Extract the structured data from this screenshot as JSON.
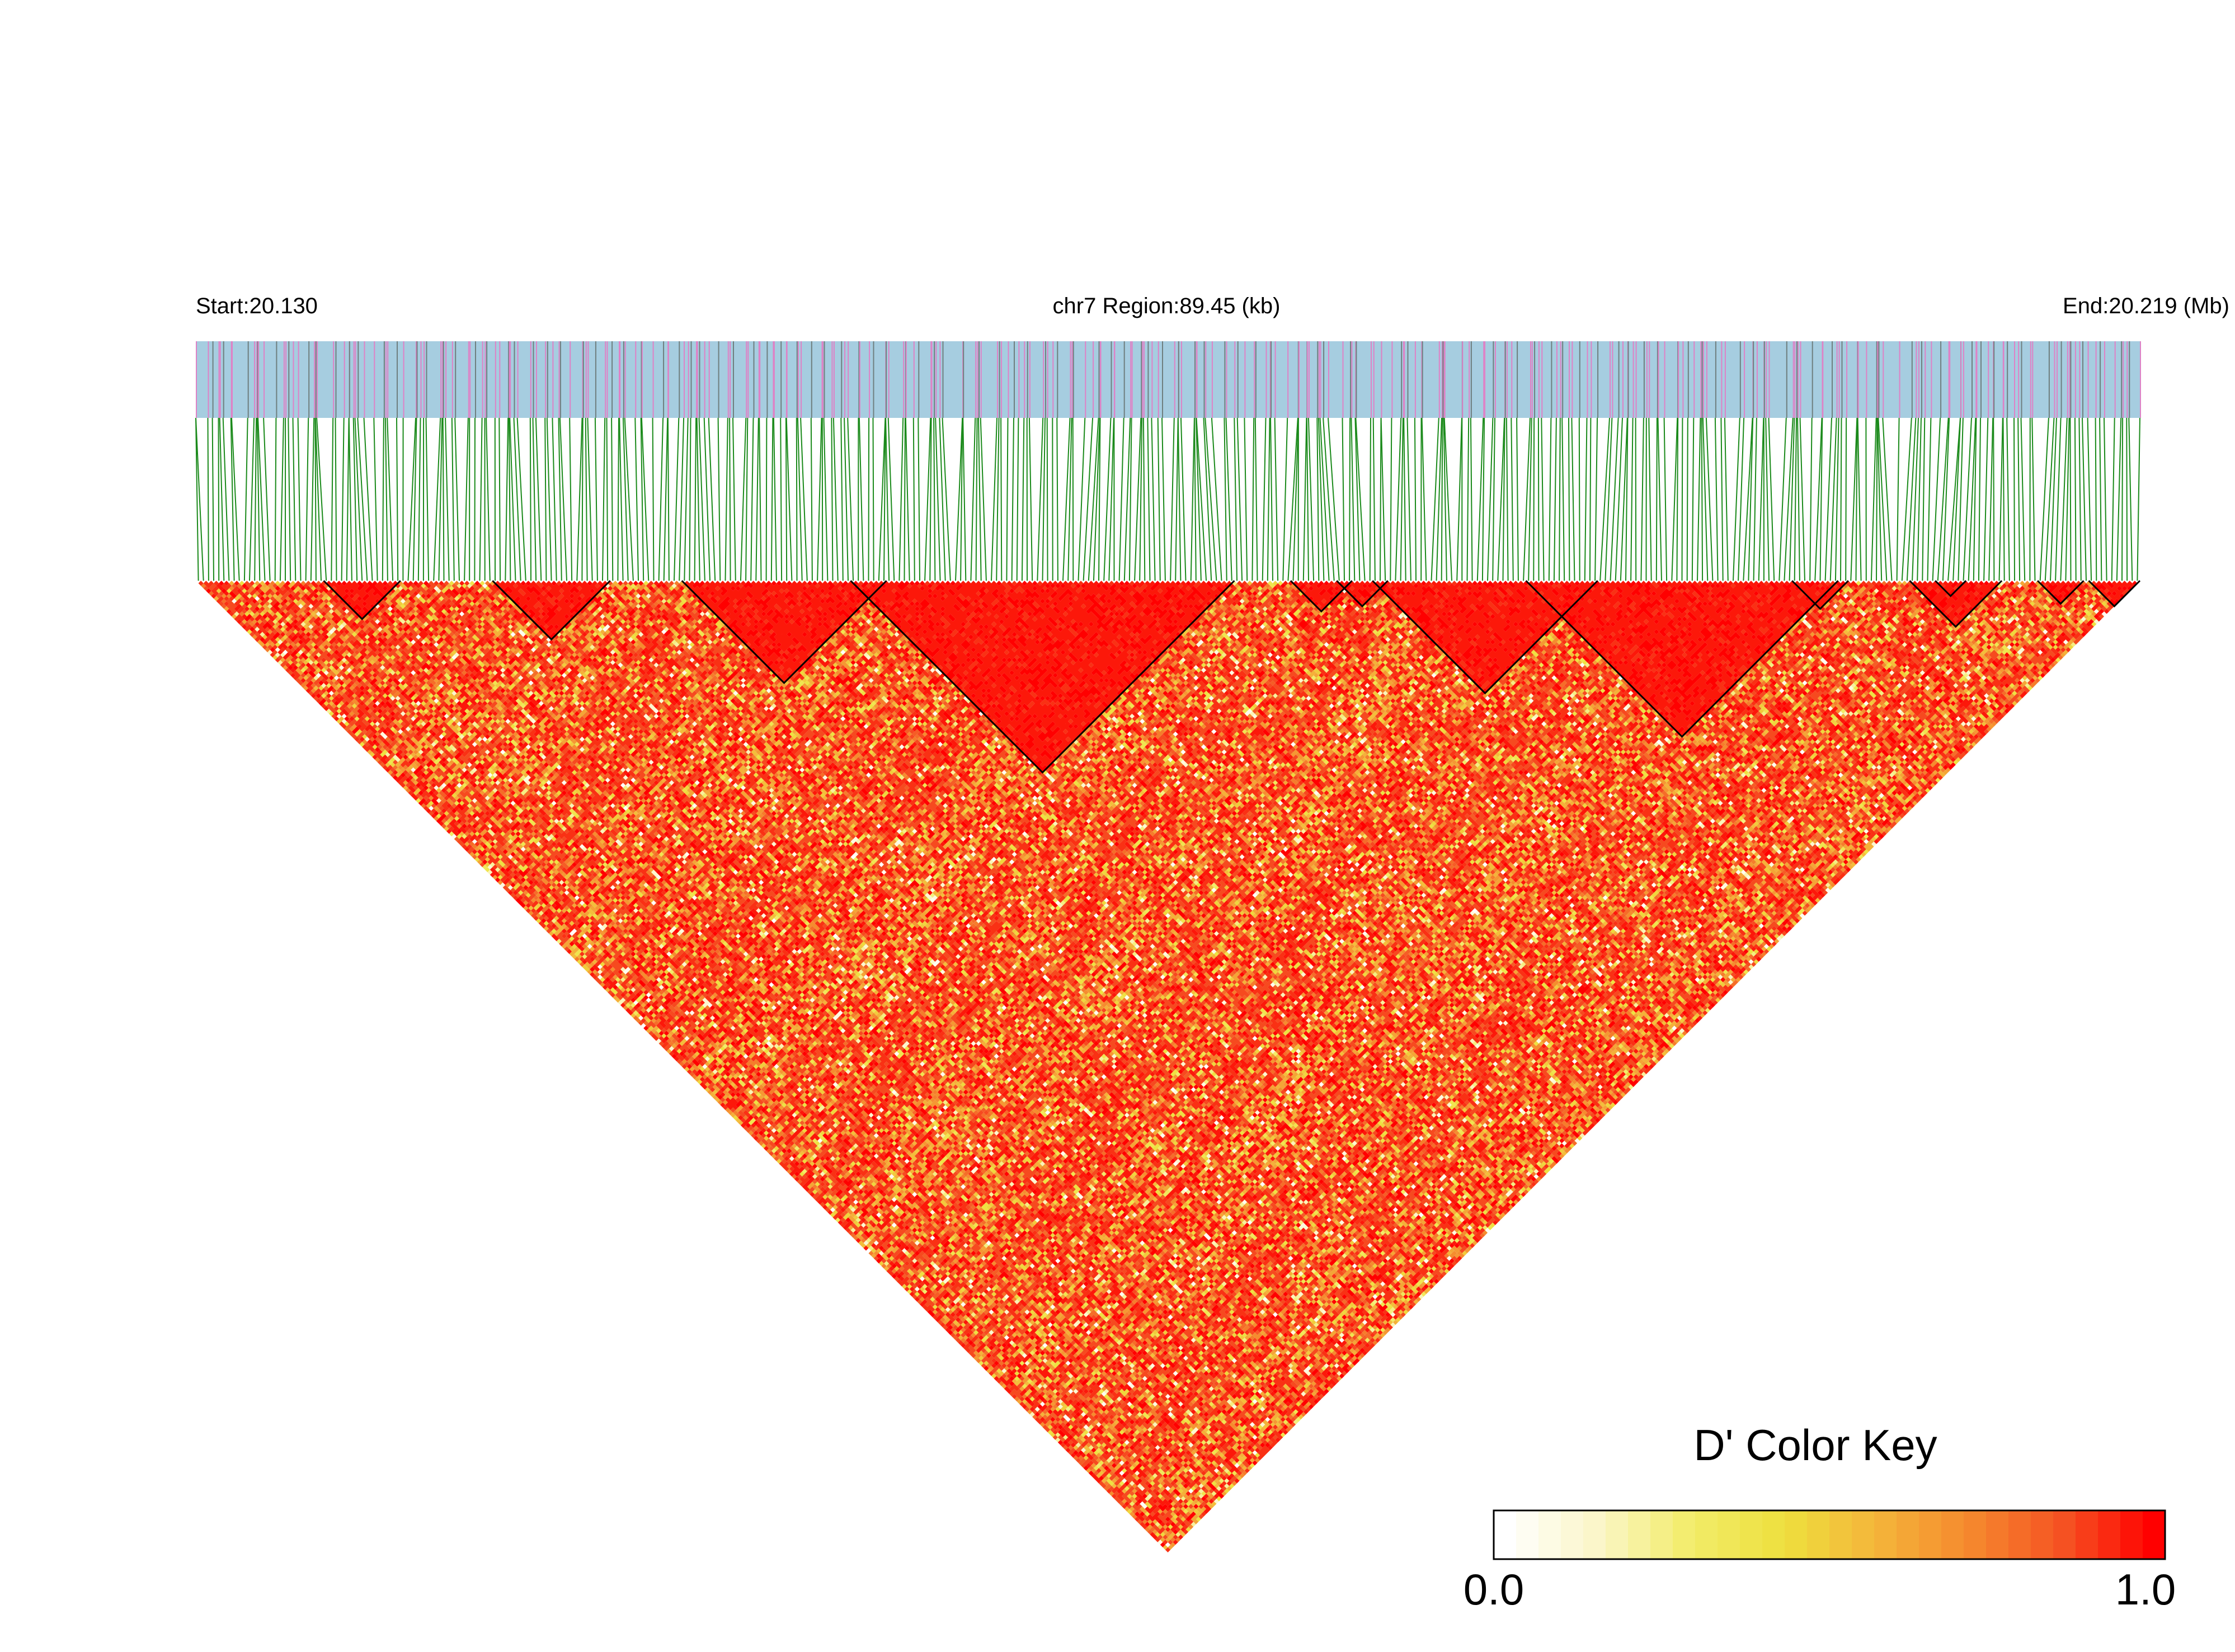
{
  "header": {
    "start_label": "Start:20.130",
    "region_label": "chr7 Region:89.45 (kb)",
    "end_label": "End:20.219 (Mb)"
  },
  "chromosome": "chr7",
  "region": {
    "start_mb": 20.13,
    "end_mb": 20.219,
    "length_kb": 89.45
  },
  "gene_track": {
    "background_color": "#a6cde0",
    "snp_tick_colors": [
      "#de82c6",
      "#6f7f7f"
    ]
  },
  "connector_color": "#1b8a1b",
  "heatmap": {
    "measure": "D'",
    "snp_count": 380,
    "haplotype_block_outline": "#000000"
  },
  "color_key": {
    "title": "D' Color Key",
    "min_label": "0.0",
    "max_label": "1.0",
    "gradient_colors": [
      "#ffffff",
      "#fbf6c8",
      "#f2ec6a",
      "#eee03e",
      "#f4b53a",
      "#f58a2e",
      "#f55423",
      "#ff0000"
    ]
  }
}
